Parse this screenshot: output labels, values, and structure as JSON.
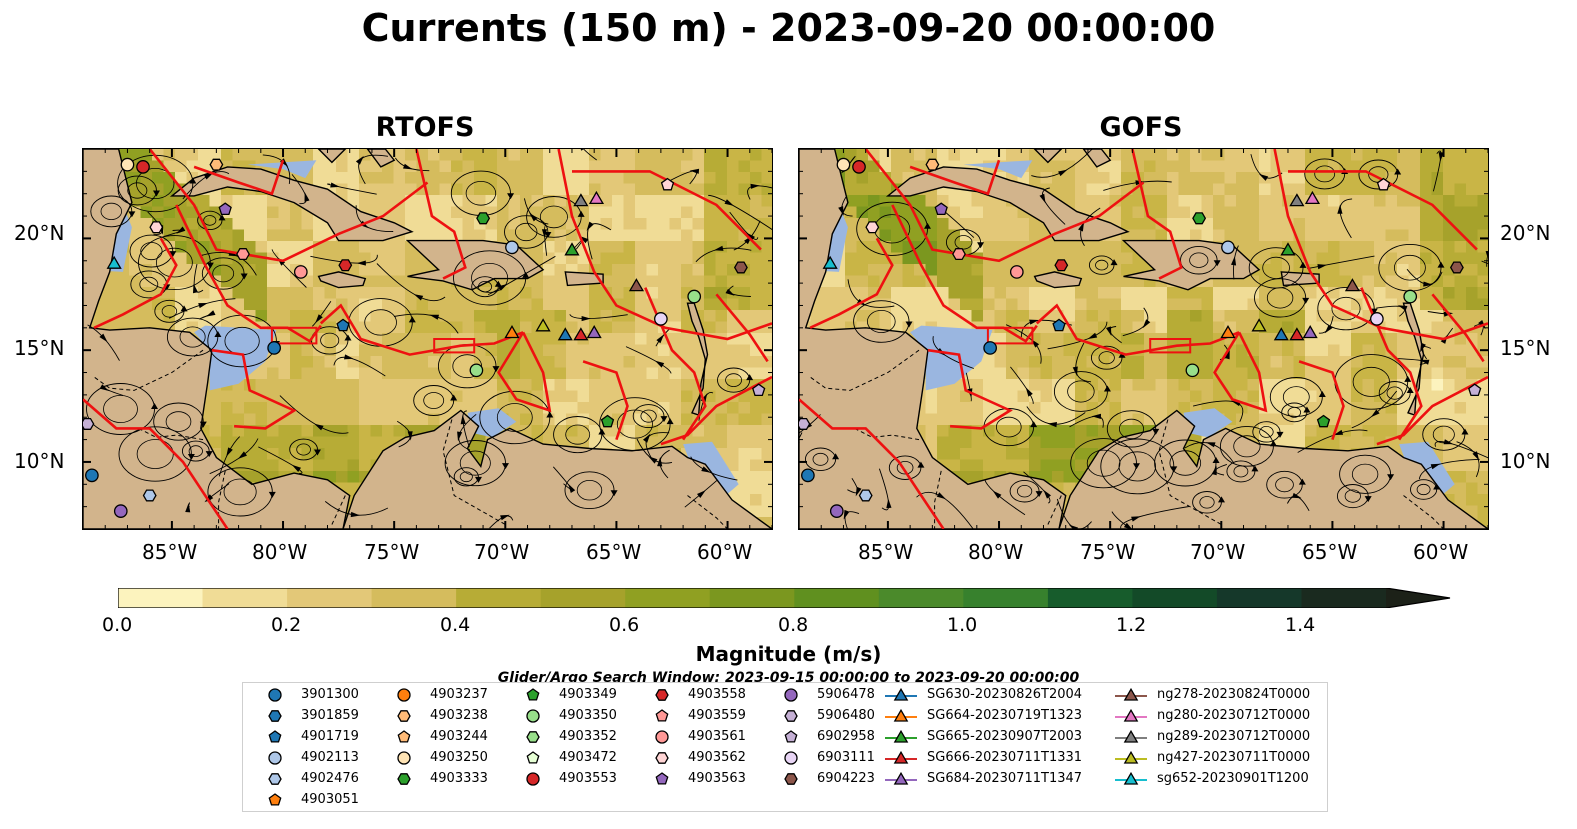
{
  "title": "Currents (150 m) - 2023-09-20 00:00:00",
  "panels": [
    {
      "title": "RTOFS"
    },
    {
      "title": "GOFS"
    }
  ],
  "lat_labels": [
    "20°N",
    "15°N",
    "10°N"
  ],
  "lon_labels": [
    "85°W",
    "80°W",
    "75°W",
    "70°W",
    "65°W",
    "60°W"
  ],
  "map_extent": {
    "lon": [
      -89,
      -58
    ],
    "lat": [
      7,
      24
    ]
  },
  "colorbar": {
    "title": "Magnitude (m/s)",
    "ticks": [
      "0.0",
      "0.2",
      "0.4",
      "0.6",
      "0.8",
      "1.0",
      "1.2",
      "1.4"
    ],
    "range": [
      0,
      1.5
    ],
    "colors": [
      "#fcf3be",
      "#f0dc96",
      "#e3c878",
      "#d5bc5d",
      "#c9b546",
      "#b7ac36",
      "#a6a22b",
      "#90a022",
      "#7b971f",
      "#60901f",
      "#4b8a2b",
      "#37812d",
      "#1f6e31",
      "#175c2c",
      "#134a28",
      "#15382a",
      "#1a2a1f",
      "#1c2118"
    ]
  },
  "legend": {
    "title": "Glider/Argo Search Window: 2023-09-15 00:00:00 to 2023-09-20 00:00:00",
    "items": [
      {
        "label": "3901300",
        "marker": "circle",
        "color": "#1f77b4"
      },
      {
        "label": "3901859",
        "marker": "hexagon",
        "color": "#1f77b4"
      },
      {
        "label": "4901719",
        "marker": "pentagon",
        "color": "#1f77b4"
      },
      {
        "label": "4902113",
        "marker": "circle",
        "color": "#aec7e8"
      },
      {
        "label": "4902476",
        "marker": "hexagon",
        "color": "#aec7e8"
      },
      {
        "label": "4903051",
        "marker": "pentagon",
        "color": "#ff7f0e"
      },
      {
        "label": "4903237",
        "marker": "circle",
        "color": "#ff7f0e"
      },
      {
        "label": "4903238",
        "marker": "hexagon",
        "color": "#ffbb78"
      },
      {
        "label": "4903244",
        "marker": "pentagon",
        "color": "#ffbb78"
      },
      {
        "label": "4903250",
        "marker": "circle",
        "color": "#ffe4b5"
      },
      {
        "label": "4903333",
        "marker": "hexagon",
        "color": "#2ca02c"
      },
      {
        "label": "4903349",
        "marker": "pentagon",
        "color": "#2ca02c"
      },
      {
        "label": "4903350",
        "marker": "circle",
        "color": "#98df8a"
      },
      {
        "label": "4903352",
        "marker": "hexagon",
        "color": "#98df8a"
      },
      {
        "label": "4903472",
        "marker": "pentagon",
        "color": "#e6ffd5"
      },
      {
        "label": "4903553",
        "marker": "circle",
        "color": "#d62728"
      },
      {
        "label": "4903558",
        "marker": "hexagon",
        "color": "#d62728"
      },
      {
        "label": "4903559",
        "marker": "pentagon",
        "color": "#ff9896"
      },
      {
        "label": "4903561",
        "marker": "circle",
        "color": "#ff9896"
      },
      {
        "label": "4903562",
        "marker": "hexagon",
        "color": "#ffd5d5"
      },
      {
        "label": "4903563",
        "marker": "pentagon",
        "color": "#9467bd"
      },
      {
        "label": "5906478",
        "marker": "circle",
        "color": "#9467bd"
      },
      {
        "label": "5906480",
        "marker": "hexagon",
        "color": "#c5b0d5"
      },
      {
        "label": "6902958",
        "marker": "pentagon",
        "color": "#c5b0d5"
      },
      {
        "label": "6903111",
        "marker": "circle",
        "color": "#e8d5f5"
      },
      {
        "label": "6904223",
        "marker": "hexagon",
        "color": "#8c564b"
      },
      {
        "label": "SG630-20230826T2004",
        "marker": "triangle",
        "color": "#1f77b4"
      },
      {
        "label": "SG664-20230719T1323",
        "marker": "triangle",
        "color": "#ff7f0e"
      },
      {
        "label": "SG665-20230907T2003",
        "marker": "triangle",
        "color": "#2ca02c"
      },
      {
        "label": "SG666-20230711T1331",
        "marker": "triangle",
        "color": "#d62728"
      },
      {
        "label": "SG684-20230711T1347",
        "marker": "triangle",
        "color": "#9467bd"
      },
      {
        "label": "ng278-20230824T0000",
        "marker": "triangle",
        "color": "#8c564b"
      },
      {
        "label": "ng280-20230712T0000",
        "marker": "triangle",
        "color": "#e377c2"
      },
      {
        "label": "ng289-20230712T0000",
        "marker": "triangle",
        "color": "#7f7f7f"
      },
      {
        "label": "ng427-20230711T0000",
        "marker": "triangle",
        "color": "#bcbd22"
      },
      {
        "label": "sg652-20230901T1200",
        "marker": "triangle",
        "color": "#17becf"
      }
    ]
  },
  "markers": [
    {
      "lon": -87.0,
      "lat": 23.3,
      "marker": "circle",
      "color": "#ffe4b5"
    },
    {
      "lon": -86.3,
      "lat": 23.2,
      "marker": "circle",
      "color": "#d62728"
    },
    {
      "lon": -83.0,
      "lat": 23.3,
      "marker": "hexagon",
      "color": "#ffbb78"
    },
    {
      "lon": -82.6,
      "lat": 21.3,
      "marker": "pentagon",
      "color": "#9467bd"
    },
    {
      "lon": -85.7,
      "lat": 20.5,
      "marker": "hexagon",
      "color": "#ffd5d5"
    },
    {
      "lon": -87.6,
      "lat": 18.9,
      "marker": "triangle",
      "color": "#17becf"
    },
    {
      "lon": -81.8,
      "lat": 19.3,
      "marker": "hexagon",
      "color": "#ff9896"
    },
    {
      "lon": -79.2,
      "lat": 18.5,
      "marker": "circle",
      "color": "#ff9896"
    },
    {
      "lon": -77.2,
      "lat": 18.8,
      "marker": "hexagon",
      "color": "#d62728"
    },
    {
      "lon": -71.0,
      "lat": 20.9,
      "marker": "hexagon",
      "color": "#2ca02c"
    },
    {
      "lon": -69.7,
      "lat": 19.6,
      "marker": "circle",
      "color": "#aec7e8"
    },
    {
      "lon": -67.0,
      "lat": 19.5,
      "marker": "triangle",
      "color": "#2ca02c"
    },
    {
      "lon": -66.6,
      "lat": 21.7,
      "marker": "triangle",
      "color": "#7f7f7f"
    },
    {
      "lon": -65.9,
      "lat": 21.8,
      "marker": "triangle",
      "color": "#e377c2"
    },
    {
      "lon": -62.7,
      "lat": 22.4,
      "marker": "pentagon",
      "color": "#ffd5d5"
    },
    {
      "lon": -64.1,
      "lat": 17.9,
      "marker": "triangle",
      "color": "#8c564b"
    },
    {
      "lon": -59.4,
      "lat": 18.7,
      "marker": "hexagon",
      "color": "#8c564b"
    },
    {
      "lon": -61.5,
      "lat": 17.4,
      "marker": "circle",
      "color": "#98df8a"
    },
    {
      "lon": -63.0,
      "lat": 16.4,
      "marker": "circle",
      "color": "#e8d5f5"
    },
    {
      "lon": -77.3,
      "lat": 16.1,
      "marker": "pentagon",
      "color": "#1f77b4"
    },
    {
      "lon": -69.7,
      "lat": 15.8,
      "marker": "triangle",
      "color": "#ff7f0e"
    },
    {
      "lon": -68.3,
      "lat": 16.1,
      "marker": "triangle",
      "color": "#bcbd22"
    },
    {
      "lon": -67.3,
      "lat": 15.7,
      "marker": "triangle",
      "color": "#1f77b4"
    },
    {
      "lon": -66.6,
      "lat": 15.7,
      "marker": "triangle",
      "color": "#d62728"
    },
    {
      "lon": -66.0,
      "lat": 15.8,
      "marker": "triangle",
      "color": "#9467bd"
    },
    {
      "lon": -80.4,
      "lat": 15.1,
      "marker": "circle",
      "color": "#1f77b4"
    },
    {
      "lon": -71.3,
      "lat": 14.1,
      "marker": "circle",
      "color": "#98df8a"
    },
    {
      "lon": -65.4,
      "lat": 11.8,
      "marker": "pentagon",
      "color": "#2ca02c"
    },
    {
      "lon": -58.6,
      "lat": 13.2,
      "marker": "pentagon",
      "color": "#c5b0d5"
    },
    {
      "lon": -88.8,
      "lat": 11.7,
      "marker": "hexagon",
      "color": "#c5b0d5"
    },
    {
      "lon": -88.6,
      "lat": 9.4,
      "marker": "circle",
      "color": "#1f77b4"
    },
    {
      "lon": -86.0,
      "lat": 8.5,
      "marker": "hexagon",
      "color": "#aec7e8"
    },
    {
      "lon": -87.3,
      "lat": 7.8,
      "marker": "circle",
      "color": "#9467bd"
    }
  ]
}
